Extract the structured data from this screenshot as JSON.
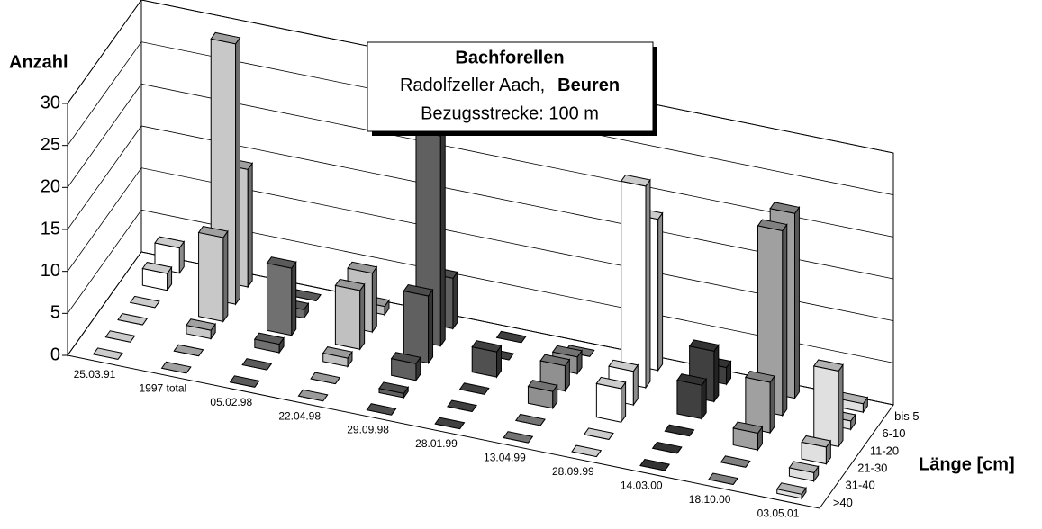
{
  "chart_data": {
    "type": "bar3d",
    "title": "Bachforellen",
    "subtitle": "Radolfzeller Aach,",
    "subtitle_bold": "Beuren",
    "note": "Bezugsstrecke: 100 m",
    "y_label": "Anzahl",
    "depth_label": "Länge [cm]",
    "categories": [
      "25.03.91",
      "1997 total",
      "05.02.98",
      "22.04.98",
      "29.09.98",
      "28.01.99",
      "13.04.99",
      "28.09.99",
      "14.03.00",
      "18.10.00",
      "03.05.01"
    ],
    "category_colors": [
      "#ffffff",
      "#c8c8c8",
      "#707070",
      "#c0c0c0",
      "#606060",
      "#505050",
      "#909090",
      "#ffffff",
      "#404040",
      "#a0a0a0",
      "#e0e0e0"
    ],
    "series": [
      {
        "name": "bis 5",
        "values": [
          3,
          14,
          0,
          1,
          6,
          0,
          0,
          18,
          2,
          22,
          1
        ]
      },
      {
        "name": "6-10",
        "values": [
          2,
          31,
          1,
          7,
          25,
          0,
          2,
          24,
          6,
          22,
          1
        ]
      },
      {
        "name": "11-20",
        "values": [
          0,
          10,
          8,
          7,
          8,
          3,
          3,
          4,
          4,
          6,
          9
        ]
      },
      {
        "name": "21-30",
        "values": [
          0,
          1,
          1,
          1,
          2,
          0,
          2,
          4,
          0,
          2,
          2
        ]
      },
      {
        "name": "31-40",
        "values": [
          0,
          0,
          0,
          0,
          0.5,
          0,
          0,
          0,
          0,
          0,
          1
        ]
      },
      {
        "name": ">40",
        "values": [
          0,
          0,
          0,
          0,
          0,
          0,
          0,
          0,
          0,
          0,
          0.5
        ]
      }
    ],
    "ylim": [
      0,
      30
    ],
    "yticks": [
      0,
      5,
      10,
      15,
      20,
      25,
      30
    ],
    "grid": true
  }
}
